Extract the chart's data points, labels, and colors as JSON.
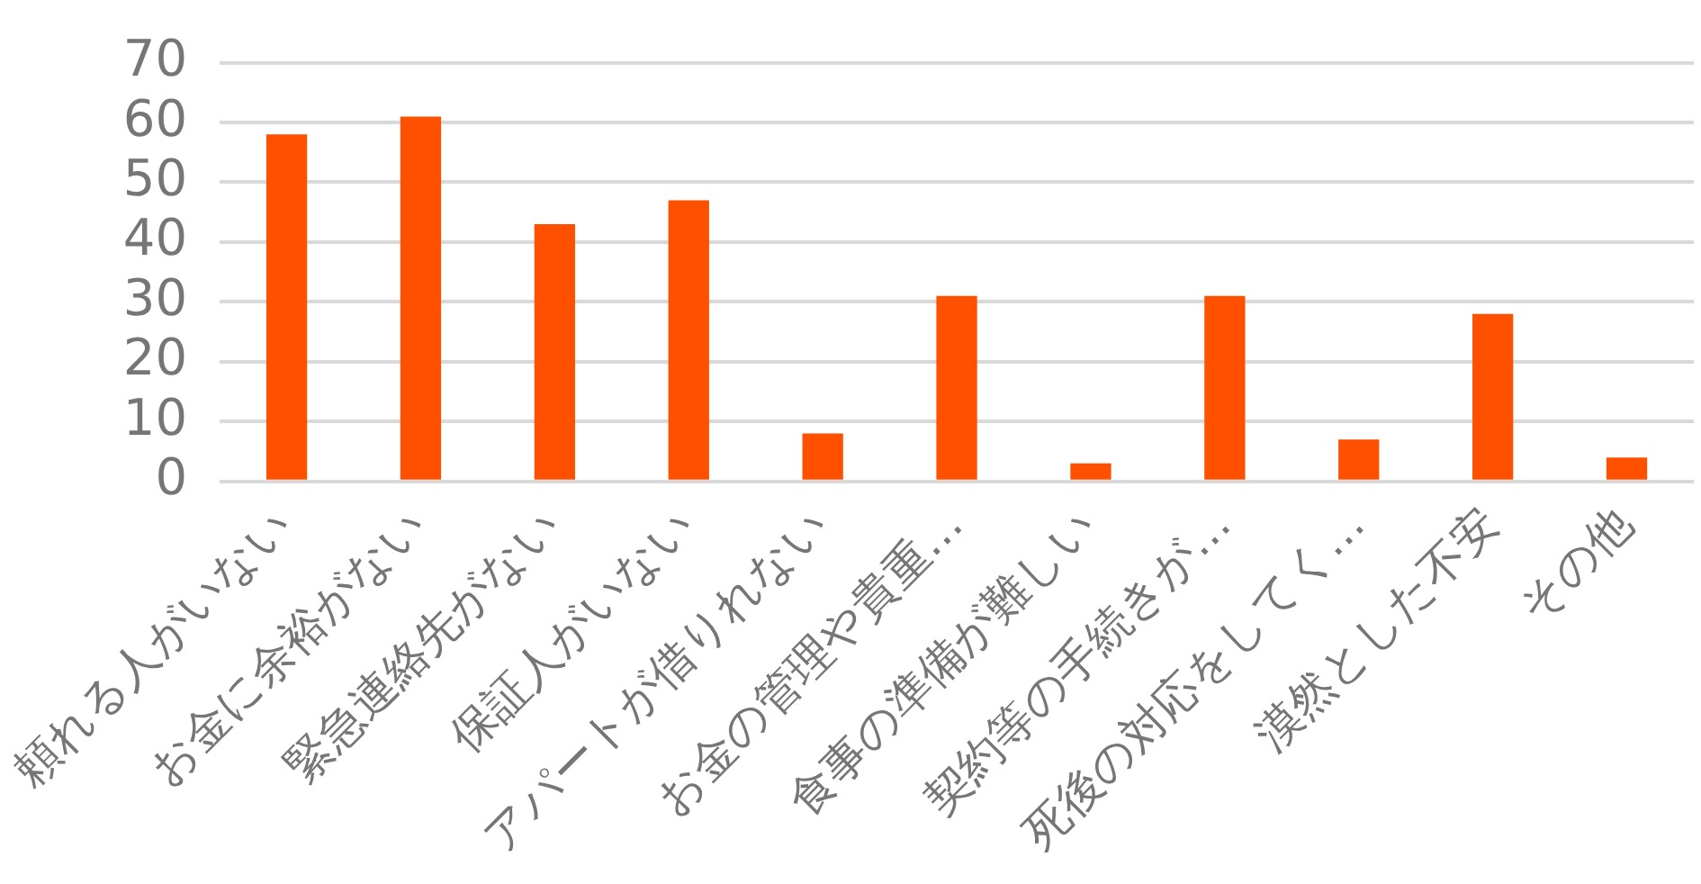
{
  "chart_data": {
    "type": "bar",
    "categories": [
      "頼れる人がいない",
      "お金に余裕がない",
      "緊急連絡先がない",
      "保証人がいない",
      "アパートが借りれない",
      "お金の管理や貴重…",
      "食事の準備が難しい",
      "契約等の手続きが…",
      "死後の対応をしてく…",
      "漠然とした不安",
      "その他"
    ],
    "values": [
      58,
      61,
      43,
      47,
      8,
      31,
      3,
      31,
      7,
      28,
      4
    ],
    "color": "#ff5000",
    "ylim": [
      0,
      70
    ],
    "yticks": [
      0,
      10,
      20,
      30,
      40,
      50,
      60,
      70
    ],
    "grid": "y",
    "legend": false
  }
}
